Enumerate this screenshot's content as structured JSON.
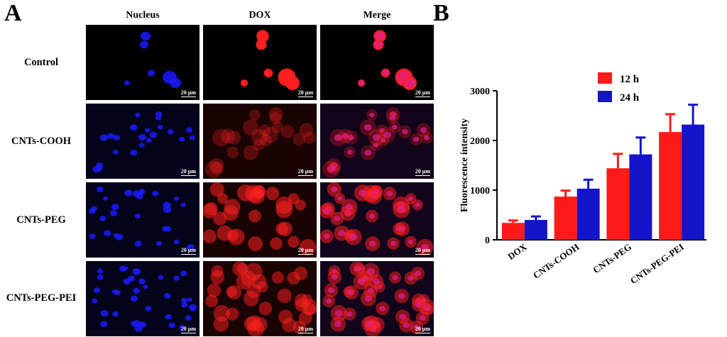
{
  "panel_a": {
    "letter": "A",
    "columns": [
      "Nucleus",
      "DOX",
      "Merge"
    ],
    "rows": [
      "Control",
      "CNTs-COOH",
      "CNTs-PEG",
      "CNTs-PEG-PEI"
    ],
    "scale_bar": "20 μm"
  },
  "panel_b": {
    "letter": "B"
  },
  "colors": {
    "nucleus": "#1a1aff",
    "dox": "#ff1f1f",
    "merge": "#e0208f",
    "bar_12h": "#ff1a1a",
    "bar_24h": "#1414c8"
  },
  "chart_data": {
    "type": "bar",
    "categories": [
      "DOX",
      "CNTs-COOH",
      "CNTs-PEG",
      "CNTs-PEG-PEI"
    ],
    "series": [
      {
        "name": "12 h",
        "values": [
          340,
          870,
          1440,
          2170
        ],
        "errors": [
          50,
          120,
          290,
          360
        ]
      },
      {
        "name": "24 h",
        "values": [
          400,
          1030,
          1720,
          2320
        ],
        "errors": [
          70,
          180,
          340,
          400
        ]
      }
    ],
    "ylabel": "Fluorescence intensity",
    "xlabel": "",
    "ylim": [
      0,
      3000
    ],
    "yticks": [
      0,
      1000,
      2000,
      3000
    ],
    "legend": "top-center"
  }
}
